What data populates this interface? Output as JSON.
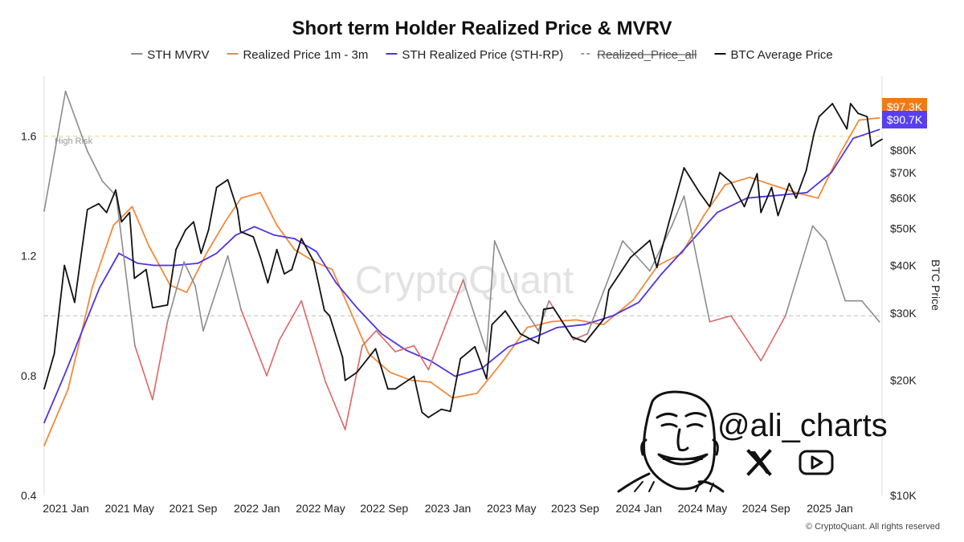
{
  "chart_data": {
    "type": "line",
    "title": "Short term Holder Realized Price & MVRV",
    "x_ticks": [
      "2021 Jan",
      "2021 May",
      "2021 Sep",
      "2022 Jan",
      "2022 May",
      "2022 Sep",
      "2023 Jan",
      "2023 May",
      "2023 Sep",
      "2024 Jan",
      "2024 May",
      "2024 Sep",
      "2025 Jan"
    ],
    "x_range": [
      "2020-12-01",
      "2025-03-20"
    ],
    "left_axis": {
      "label": "",
      "range": [
        0.4,
        1.8
      ],
      "ticks": [
        "0.4",
        "0.8",
        "1.2",
        "1.6"
      ]
    },
    "right_axis": {
      "label": "BTC Price",
      "scale": "log",
      "range": [
        10000,
        125000
      ],
      "ticks": [
        "$10K",
        "$20K",
        "$30K",
        "$40K",
        "$50K",
        "$60K",
        "$70K",
        "$80K"
      ],
      "tick_values": [
        10000,
        20000,
        30000,
        40000,
        50000,
        60000,
        70000,
        80000
      ]
    },
    "reference_lines": [
      {
        "name": "High Risk",
        "value": 1.6,
        "color": "#e8d86a"
      },
      {
        "name": "",
        "value": 1.0,
        "color": "#bbbbbb"
      }
    ],
    "price_labels": [
      {
        "text": "$97.3K",
        "value": 97300,
        "color": "#f07b14"
      },
      {
        "text": "$90.7K",
        "value": 90700,
        "color": "#5a3ff0"
      }
    ],
    "series": [
      {
        "name": "STH MVRV",
        "axis": "left",
        "color": "#8c8c8c",
        "below_one_color": "#e06666",
        "x": [
          "2020-12-01",
          "2021-01-10",
          "2021-02-20",
          "2021-03-20",
          "2021-04-15",
          "2021-05-20",
          "2021-06-22",
          "2021-07-20",
          "2021-08-20",
          "2021-09-10",
          "2021-09-25",
          "2021-11-10",
          "2021-12-05",
          "2022-01-22",
          "2022-02-15",
          "2022-03-28",
          "2022-05-12",
          "2022-06-18",
          "2022-07-20",
          "2022-08-15",
          "2022-09-20",
          "2022-10-25",
          "2022-11-21",
          "2023-01-25",
          "2023-03-10",
          "2023-03-25",
          "2023-05-10",
          "2023-06-15",
          "2023-07-05",
          "2023-08-20",
          "2023-09-15",
          "2023-10-15",
          "2023-11-20",
          "2024-01-10",
          "2024-02-20",
          "2024-03-14",
          "2024-05-01",
          "2024-06-10",
          "2024-08-05",
          "2024-09-20",
          "2024-11-10",
          "2024-12-05",
          "2025-01-10",
          "2025-02-10",
          "2025-03-15"
        ],
        "values": [
          1.35,
          1.75,
          1.55,
          1.45,
          1.4,
          0.9,
          0.72,
          0.98,
          1.18,
          1.1,
          0.95,
          1.2,
          1.02,
          0.8,
          0.92,
          1.05,
          0.78,
          0.62,
          0.9,
          0.95,
          0.88,
          0.9,
          0.82,
          1.12,
          0.88,
          1.25,
          1.05,
          0.95,
          1.05,
          0.92,
          0.94,
          1.08,
          1.25,
          1.15,
          1.3,
          1.4,
          0.98,
          1.0,
          0.85,
          1.0,
          1.3,
          1.25,
          1.05,
          1.05,
          0.98
        ]
      },
      {
        "name": "Realized Price 1m - 3m",
        "axis": "right",
        "color": "#f08a3c",
        "x": [
          "2020-12-01",
          "2021-01-15",
          "2021-03-01",
          "2021-04-10",
          "2021-05-15",
          "2021-06-15",
          "2021-07-25",
          "2021-08-25",
          "2021-10-01",
          "2021-11-05",
          "2021-12-05",
          "2022-01-10",
          "2022-02-10",
          "2022-03-15",
          "2022-04-20",
          "2022-05-25",
          "2022-06-25",
          "2022-08-01",
          "2022-09-10",
          "2022-10-20",
          "2022-11-25",
          "2023-01-05",
          "2023-02-20",
          "2023-04-10",
          "2023-05-25",
          "2023-07-10",
          "2023-08-25",
          "2023-10-15",
          "2023-12-10",
          "2024-01-25",
          "2024-03-10",
          "2024-04-20",
          "2024-05-30",
          "2024-07-15",
          "2024-08-25",
          "2024-10-10",
          "2024-11-20",
          "2024-12-30",
          "2025-02-05",
          "2025-03-15"
        ],
        "values": [
          13500,
          19000,
          35000,
          51000,
          57000,
          45000,
          35500,
          34000,
          43000,
          52000,
          60000,
          62000,
          51000,
          44000,
          41000,
          39000,
          31000,
          23500,
          21000,
          20000,
          19800,
          18000,
          18500,
          22500,
          27500,
          28500,
          28800,
          28000,
          32500,
          40000,
          43000,
          54000,
          65000,
          68000,
          65000,
          62000,
          60000,
          78000,
          96000,
          97300
        ]
      },
      {
        "name": "STH Realized Price (STH-RP)",
        "axis": "right",
        "color": "#4f33e0",
        "x": [
          "2020-12-01",
          "2021-01-10",
          "2021-02-15",
          "2021-03-15",
          "2021-04-20",
          "2021-05-25",
          "2021-06-25",
          "2021-08-05",
          "2021-09-15",
          "2021-10-20",
          "2021-11-25",
          "2021-12-30",
          "2022-02-05",
          "2022-03-15",
          "2022-04-25",
          "2022-06-01",
          "2022-07-10",
          "2022-08-25",
          "2022-10-10",
          "2022-11-25",
          "2023-01-10",
          "2023-03-01",
          "2023-04-20",
          "2023-06-10",
          "2023-07-20",
          "2023-09-10",
          "2023-11-01",
          "2023-12-20",
          "2024-02-01",
          "2024-03-20",
          "2024-05-15",
          "2024-07-10",
          "2024-09-05",
          "2024-10-30",
          "2024-12-15",
          "2025-01-25",
          "2025-03-15"
        ],
        "values": [
          15500,
          21000,
          28000,
          35000,
          43000,
          40500,
          40000,
          40000,
          40500,
          43000,
          48000,
          50500,
          48000,
          47000,
          43500,
          36000,
          31000,
          26500,
          24000,
          22500,
          20500,
          21500,
          24500,
          26000,
          27500,
          28000,
          29500,
          32000,
          38000,
          45000,
          55000,
          60000,
          61000,
          62000,
          70000,
          86000,
          90700
        ]
      },
      {
        "name": "Realized_Price_all",
        "axis": "right",
        "color": "#9a9a9a",
        "dashed": true,
        "struck_through": true,
        "visible": false,
        "x": [],
        "values": []
      },
      {
        "name": "BTC Average Price",
        "axis": "right",
        "color": "#111111",
        "x": [
          "2020-12-01",
          "2020-12-20",
          "2021-01-08",
          "2021-01-27",
          "2021-02-20",
          "2021-03-13",
          "2021-03-28",
          "2021-04-14",
          "2021-04-25",
          "2021-05-10",
          "2021-05-19",
          "2021-06-10",
          "2021-06-22",
          "2021-07-20",
          "2021-08-05",
          "2021-08-23",
          "2021-09-07",
          "2021-09-21",
          "2021-10-05",
          "2021-10-20",
          "2021-11-10",
          "2021-11-28",
          "2021-12-04",
          "2021-12-28",
          "2022-01-10",
          "2022-01-24",
          "2022-02-10",
          "2022-02-24",
          "2022-03-10",
          "2022-03-28",
          "2022-04-20",
          "2022-05-10",
          "2022-05-20",
          "2022-06-13",
          "2022-06-18",
          "2022-07-10",
          "2022-08-14",
          "2022-09-06",
          "2022-09-20",
          "2022-10-25",
          "2022-11-09",
          "2022-11-21",
          "2022-12-15",
          "2023-01-01",
          "2023-01-20",
          "2023-02-16",
          "2023-03-10",
          "2023-03-20",
          "2023-04-14",
          "2023-05-12",
          "2023-06-15",
          "2023-06-25",
          "2023-07-13",
          "2023-08-17",
          "2023-09-11",
          "2023-10-16",
          "2023-10-25",
          "2023-12-05",
          "2024-01-10",
          "2024-01-23",
          "2024-02-15",
          "2024-03-14",
          "2024-04-12",
          "2024-05-01",
          "2024-05-20",
          "2024-06-10",
          "2024-07-05",
          "2024-07-29",
          "2024-08-05",
          "2024-08-25",
          "2024-09-06",
          "2024-09-27",
          "2024-10-10",
          "2024-10-29",
          "2024-11-13",
          "2024-11-22",
          "2024-12-17",
          "2025-01-13",
          "2025-01-20",
          "2025-02-03",
          "2025-02-20",
          "2025-02-28",
          "2025-03-10",
          "2025-03-20"
        ],
        "values": [
          19000,
          23500,
          40000,
          32000,
          56000,
          58000,
          55000,
          63000,
          52000,
          55000,
          37000,
          39000,
          31000,
          31500,
          44000,
          49500,
          52000,
          43000,
          49500,
          64000,
          67000,
          56000,
          49000,
          47500,
          42000,
          36000,
          44000,
          38000,
          39000,
          47000,
          41000,
          30500,
          29500,
          23000,
          20000,
          21000,
          24200,
          19000,
          19000,
          20500,
          16500,
          16000,
          16800,
          16600,
          22800,
          24500,
          20200,
          28000,
          30400,
          26500,
          25000,
          30700,
          31000,
          26000,
          25200,
          29000,
          34500,
          42000,
          46500,
          39500,
          52000,
          72000,
          62000,
          57000,
          70000,
          66000,
          57000,
          69500,
          55000,
          64000,
          54000,
          65500,
          60000,
          71000,
          89000,
          98000,
          106000,
          91000,
          106000,
          100000,
          98000,
          82000,
          84000,
          85500
        ]
      }
    ]
  },
  "watermark": "CryptoQuant",
  "high_risk_label": "High Risk",
  "branding": {
    "handle": "@ali_charts",
    "x_icon": "x-logo-icon",
    "youtube_icon": "youtube-play-icon",
    "avatar": "meme-face-drawing"
  },
  "footer": "© CryptoQuant. All rights reserved"
}
